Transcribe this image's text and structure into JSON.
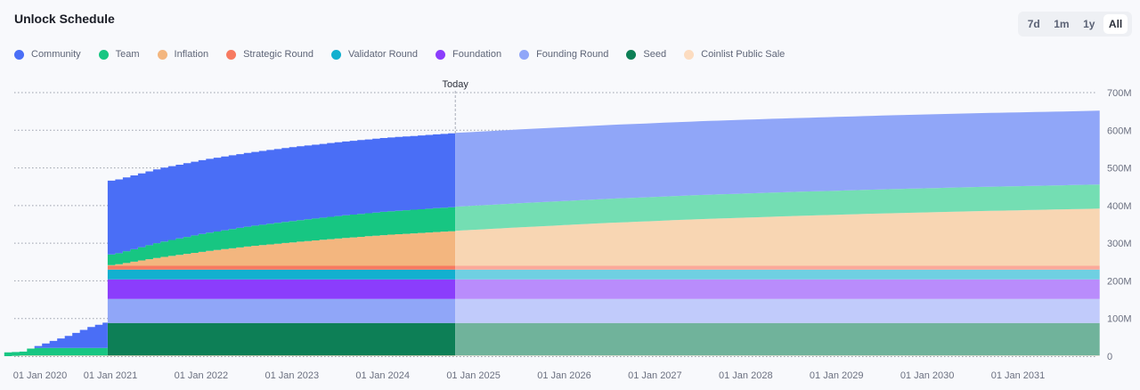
{
  "header": {
    "title": "Unlock Schedule"
  },
  "range_selector": {
    "options": [
      "7d",
      "1m",
      "1y",
      "All"
    ],
    "selected": "All"
  },
  "chart_data": {
    "type": "area",
    "title": "Unlock Schedule",
    "xlabel": "",
    "ylabel": "",
    "stacked": true,
    "x_unit": "year",
    "x_range": [
      2019.8,
      2031.92
    ],
    "ylim": [
      0,
      700
    ],
    "y_unit": "M",
    "y_ticks": [
      "0",
      "100M",
      "200M",
      "300M",
      "400M",
      "500M",
      "600M",
      "700M"
    ],
    "y_tick_values": [
      0,
      100,
      200,
      300,
      400,
      500,
      600,
      700
    ],
    "x_ticks": [
      "01 Jan 2020",
      "01 Jan 2021",
      "01 Jan 2022",
      "01 Jan 2023",
      "01 Jan 2024",
      "01 Jan 2025",
      "01 Jan 2026",
      "01 Jan 2027",
      "01 Jan 2028",
      "01 Jan 2029",
      "01 Jan 2030",
      "01 Jan 2031"
    ],
    "x_tick_values": [
      2020,
      2021,
      2022,
      2023,
      2024,
      2025,
      2026,
      2027,
      2028,
      2029,
      2030,
      2031
    ],
    "grid": true,
    "legend_position": "top-left",
    "today": {
      "label": "Today",
      "x": 2024.8
    },
    "x": [
      2019.83,
      2020.0,
      2020.1,
      2020.25,
      2020.5,
      2020.75,
      2020.96,
      2021.0,
      2021.5,
      2022.0,
      2022.5,
      2023.0,
      2023.5,
      2024.0,
      2024.8,
      2025.5,
      2026.5,
      2027.5,
      2028.5,
      2029.5,
      2030.5,
      2031.92
    ],
    "series": [
      {
        "name": "Coinlist Public Sale",
        "color": "#fcdcc0",
        "values": [
          0,
          2,
          2,
          2,
          2,
          2,
          2,
          2,
          2,
          2,
          2,
          2,
          2,
          2,
          2,
          2,
          2,
          2,
          2,
          2,
          2,
          2
        ]
      },
      {
        "name": "Seed",
        "color": "#0d7f56",
        "values": [
          0,
          0,
          0,
          0,
          0,
          0,
          0,
          86,
          86,
          86,
          86,
          86,
          86,
          86,
          86,
          86,
          86,
          86,
          86,
          86,
          86,
          86
        ]
      },
      {
        "name": "Founding Round",
        "color": "#90a6f8",
        "values": [
          0,
          0,
          0,
          0,
          0,
          0,
          0,
          64,
          64,
          64,
          64,
          64,
          64,
          64,
          64,
          64,
          64,
          64,
          64,
          64,
          64,
          64
        ]
      },
      {
        "name": "Foundation",
        "color": "#8b3dfc",
        "values": [
          0,
          0,
          0,
          0,
          0,
          0,
          0,
          52,
          52,
          52,
          52,
          52,
          52,
          52,
          52,
          52,
          52,
          52,
          52,
          52,
          52,
          52
        ]
      },
      {
        "name": "Validator Round",
        "color": "#12b0cf",
        "values": [
          0,
          0,
          0,
          0,
          0,
          0,
          0,
          26,
          26,
          26,
          26,
          26,
          26,
          26,
          26,
          26,
          26,
          26,
          26,
          26,
          26,
          26
        ]
      },
      {
        "name": "Strategic Round",
        "color": "#f77a61",
        "values": [
          0,
          0,
          0,
          0,
          0,
          0,
          0,
          10,
          10,
          10,
          10,
          10,
          10,
          10,
          10,
          10,
          10,
          10,
          10,
          10,
          10,
          10
        ]
      },
      {
        "name": "Inflation",
        "color": "#f3b67f",
        "values": [
          0,
          0,
          0,
          0,
          0,
          0,
          0,
          2,
          22,
          38,
          52,
          63,
          73,
          82,
          93,
          102,
          114,
          124,
          132,
          139,
          145,
          152
        ]
      },
      {
        "name": "Team",
        "color": "#17c682",
        "values": [
          10,
          10,
          20,
          20,
          20,
          20,
          20,
          28,
          40,
          48,
          53,
          57,
          60,
          62,
          64,
          64,
          64,
          64,
          64,
          64,
          64,
          64
        ]
      },
      {
        "name": "Community",
        "color": "#4a6ef6",
        "values": [
          0,
          0,
          0,
          12,
          32,
          56,
          70,
          196,
          196,
          196,
          196,
          196,
          196,
          196,
          196,
          196,
          196,
          196,
          196,
          196,
          196,
          196
        ]
      }
    ],
    "projected_colors": {
      "Coinlist Public Sale": "#fdeadb",
      "Seed": "#70b39b",
      "Founding Round": "#c1cbfb",
      "Foundation": "#b98cfc",
      "Validator Round": "#6fd0e2",
      "Strategic Round": "#fba99a",
      "Inflation": "#f8d6b3",
      "Team": "#74deb3",
      "Community": "#90a6f8"
    },
    "legend": [
      {
        "label": "Community",
        "color": "#4a6ef6"
      },
      {
        "label": "Team",
        "color": "#17c682"
      },
      {
        "label": "Inflation",
        "color": "#f3b67f"
      },
      {
        "label": "Strategic Round",
        "color": "#f77a61"
      },
      {
        "label": "Validator Round",
        "color": "#12b0cf"
      },
      {
        "label": "Foundation",
        "color": "#8b3dfc"
      },
      {
        "label": "Founding Round",
        "color": "#90a6f8"
      },
      {
        "label": "Seed",
        "color": "#0d7f56"
      },
      {
        "label": "Coinlist Public Sale",
        "color": "#fcdcc0"
      }
    ]
  }
}
